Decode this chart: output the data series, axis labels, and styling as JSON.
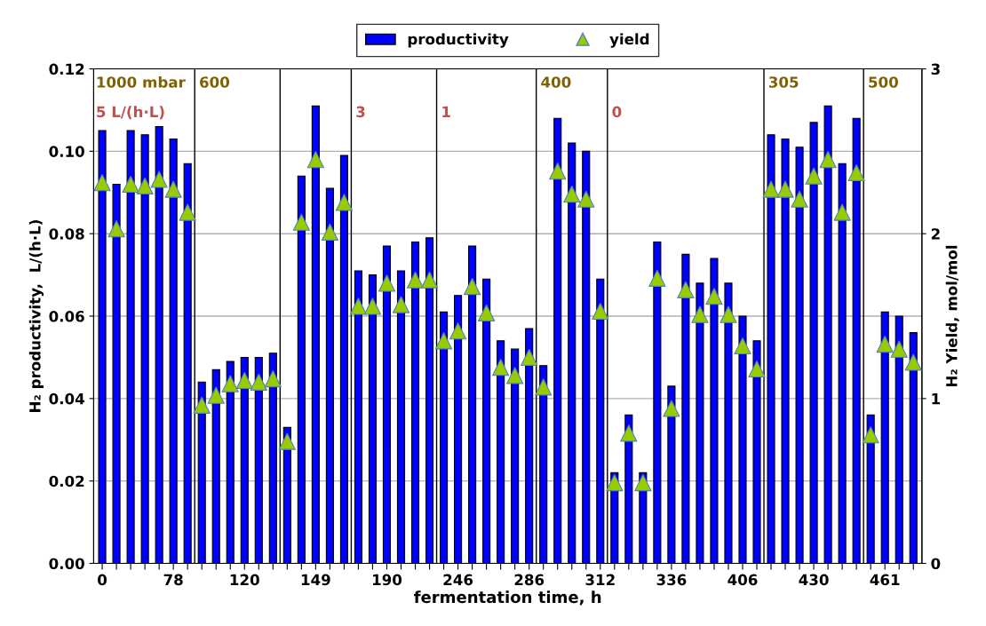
{
  "chart_data": {
    "type": "bar",
    "xlabel": "fermentation time, h",
    "ylabel": "H₂ productivity,  L/(h·L)",
    "y2label": "H₂ Yield, mol/mol",
    "categories": [
      "0",
      null,
      null,
      null,
      null,
      "78",
      null,
      null,
      null,
      null,
      "120",
      null,
      null,
      null,
      null,
      "149",
      null,
      null,
      null,
      null,
      "190",
      null,
      null,
      null,
      null,
      "246",
      null,
      null,
      null,
      null,
      "286",
      null,
      null,
      null,
      null,
      "312",
      null,
      null,
      null,
      null,
      "336",
      null,
      null,
      null,
      null,
      "406",
      null,
      null,
      null,
      null,
      "430",
      null,
      null,
      null,
      null,
      "461",
      null,
      null
    ],
    "series": [
      {
        "name": "productivity",
        "color": "#0000ff",
        "values": [
          0.105,
          0.092,
          0.105,
          0.104,
          0.106,
          0.103,
          0.097,
          0.044,
          0.047,
          0.049,
          0.05,
          0.05,
          0.051,
          0.033,
          0.094,
          0.111,
          0.091,
          0.099,
          0.071,
          0.07,
          0.077,
          0.071,
          0.078,
          0.079,
          0.061,
          0.065,
          0.077,
          0.069,
          0.054,
          0.052,
          0.057,
          0.048,
          0.108,
          0.102,
          0.1,
          0.069,
          0.022,
          0.036,
          0.022,
          0.078,
          0.043,
          0.075,
          0.068,
          0.074,
          0.068,
          0.06,
          0.054,
          0.104,
          0.103,
          0.101,
          0.107,
          0.111,
          0.097,
          0.108,
          0.036,
          0.061,
          0.06,
          0.056
        ]
      },
      {
        "name": "yield",
        "type": "scatter",
        "axis": "y2",
        "color": "#99cc00",
        "marker": "triangle",
        "values": [
          2.31,
          2.03,
          2.3,
          2.29,
          2.33,
          2.27,
          2.13,
          0.96,
          1.02,
          1.09,
          1.11,
          1.1,
          1.12,
          0.74,
          2.07,
          2.45,
          2.01,
          2.19,
          1.56,
          1.56,
          1.7,
          1.57,
          1.72,
          1.72,
          1.35,
          1.41,
          1.68,
          1.52,
          1.19,
          1.14,
          1.25,
          1.07,
          2.38,
          2.24,
          2.21,
          1.53,
          0.49,
          0.79,
          0.49,
          1.73,
          0.94,
          1.66,
          1.51,
          1.62,
          1.51,
          1.32,
          1.18,
          2.27,
          2.27,
          2.21,
          2.35,
          2.45,
          2.13,
          2.37,
          0.78,
          1.33,
          1.3,
          1.22
        ]
      }
    ],
    "ylim": [
      0,
      0.12
    ],
    "yticks": [
      {
        "value": 0,
        "label": "0.00"
      },
      {
        "value": 0.02,
        "label": "0.02"
      },
      {
        "value": 0.04,
        "label": "0.04"
      },
      {
        "value": 0.06,
        "label": "0.06"
      },
      {
        "value": 0.08,
        "label": "0.08"
      },
      {
        "value": 0.1,
        "label": "0.10"
      },
      {
        "value": 0.12,
        "label": "0.12"
      }
    ],
    "y2lim": [
      0,
      3
    ],
    "y2ticks": [
      0,
      1,
      2,
      3
    ],
    "annotations": [
      "1000 mbar",
      "5 L/(h·L)",
      "600",
      "3",
      "1",
      "400",
      "0",
      "305",
      "500"
    ],
    "grid": "y",
    "legend": "top"
  }
}
